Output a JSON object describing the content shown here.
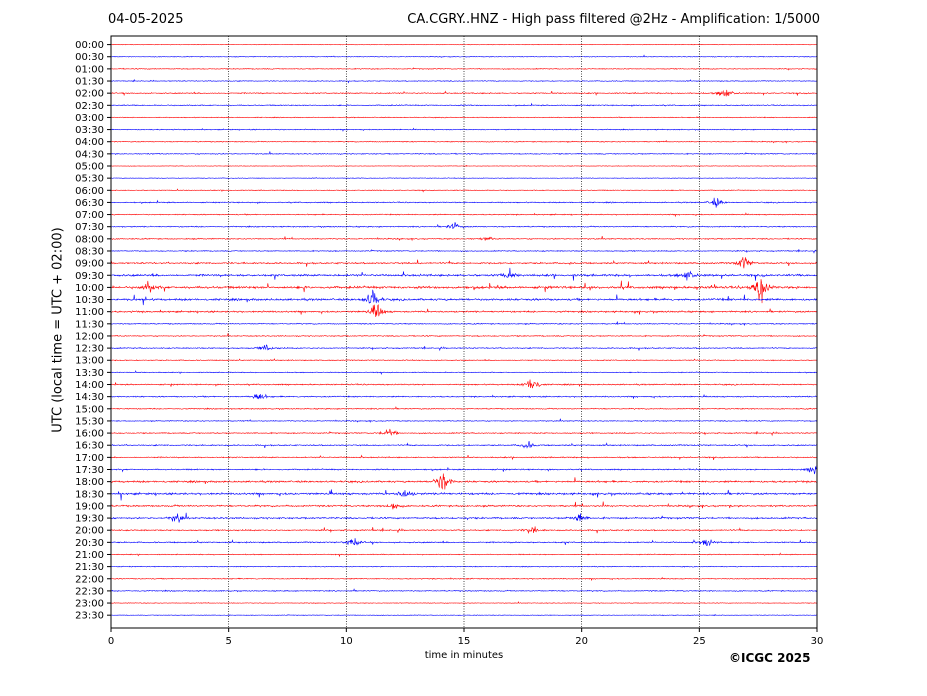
{
  "header": {
    "date": "04-05-2025",
    "title": "CA.CGRY..HNZ - High pass filtered @2Hz - Amplification: 1/5000"
  },
  "footer": {
    "copyright": "©ICGC 2025"
  },
  "chart_data": {
    "type": "line",
    "title": "CA.CGRY..HNZ - High pass filtered @2Hz - Amplification: 1/5000",
    "xlabel": "time in minutes",
    "ylabel": "UTC (local time = UTC + 02:00)",
    "xlim": [
      0,
      30
    ],
    "x_ticks": [
      0,
      5,
      10,
      15,
      20,
      25,
      30
    ],
    "grid": "vertical dotted lines at 5-minute ticks",
    "trace_colors": [
      "#ff0000",
      "#0000ff"
    ],
    "rows": [
      "00:00",
      "00:30",
      "01:00",
      "01:30",
      "02:00",
      "02:30",
      "03:00",
      "03:30",
      "04:00",
      "04:30",
      "05:00",
      "05:30",
      "06:00",
      "06:30",
      "07:00",
      "07:30",
      "08:00",
      "08:30",
      "09:00",
      "09:30",
      "10:00",
      "10:30",
      "11:00",
      "11:30",
      "12:00",
      "12:30",
      "13:00",
      "13:30",
      "14:00",
      "14:30",
      "15:00",
      "15:30",
      "16:00",
      "16:30",
      "17:00",
      "17:30",
      "18:00",
      "18:30",
      "19:00",
      "19:30",
      "20:00",
      "20:30",
      "21:00",
      "21:30",
      "22:00",
      "22:30",
      "23:00",
      "23:30"
    ],
    "row_activity": [
      0.3,
      0.6,
      0.9,
      0.8,
      1.3,
      1.2,
      0.8,
      1.0,
      1.0,
      1.1,
      0.3,
      0.4,
      0.7,
      1.3,
      1.2,
      1.3,
      1.3,
      1.1,
      2.0,
      3.0,
      3.5,
      3.0,
      2.2,
      1.2,
      1.2,
      1.3,
      1.0,
      0.8,
      1.6,
      1.5,
      1.2,
      1.0,
      1.3,
      1.5,
      1.4,
      1.6,
      2.6,
      2.8,
      2.2,
      2.2,
      1.6,
      1.6,
      0.9,
      0.8,
      1.0,
      1.2,
      0.5,
      0.4
    ],
    "events": [
      {
        "row": "02:00",
        "minute": 26.1,
        "amplitude": 10
      },
      {
        "row": "06:30",
        "minute": 25.7,
        "amplitude": 8
      },
      {
        "row": "07:30",
        "minute": 14.6,
        "amplitude": 6
      },
      {
        "row": "08:00",
        "minute": 16.0,
        "amplitude": 3
      },
      {
        "row": "09:00",
        "minute": 26.9,
        "amplitude": 12
      },
      {
        "row": "09:30",
        "minute": 24.5,
        "amplitude": 9
      },
      {
        "row": "09:30",
        "minute": 16.9,
        "amplitude": 7
      },
      {
        "row": "10:00",
        "minute": 1.6,
        "amplitude": 9
      },
      {
        "row": "10:00",
        "minute": 27.6,
        "amplitude": 25
      },
      {
        "row": "10:30",
        "minute": 11.1,
        "amplitude": 16
      },
      {
        "row": "11:00",
        "minute": 11.3,
        "amplitude": 14
      },
      {
        "row": "12:30",
        "minute": 6.6,
        "amplitude": 7
      },
      {
        "row": "14:00",
        "minute": 17.9,
        "amplitude": 14
      },
      {
        "row": "14:30",
        "minute": 6.3,
        "amplitude": 7
      },
      {
        "row": "16:00",
        "minute": 11.8,
        "amplitude": 9
      },
      {
        "row": "16:30",
        "minute": 17.7,
        "amplitude": 6
      },
      {
        "row": "17:30",
        "minute": 29.9,
        "amplitude": 12
      },
      {
        "row": "18:00",
        "minute": 14.1,
        "amplitude": 20
      },
      {
        "row": "18:30",
        "minute": 12.5,
        "amplitude": 8
      },
      {
        "row": "19:00",
        "minute": 12.0,
        "amplitude": 7
      },
      {
        "row": "19:30",
        "minute": 2.8,
        "amplitude": 9
      },
      {
        "row": "19:30",
        "minute": 19.9,
        "amplitude": 8
      },
      {
        "row": "20:00",
        "minute": 17.9,
        "amplitude": 7
      },
      {
        "row": "20:30",
        "minute": 10.3,
        "amplitude": 8
      },
      {
        "row": "20:30",
        "minute": 25.3,
        "amplitude": 7
      }
    ]
  }
}
